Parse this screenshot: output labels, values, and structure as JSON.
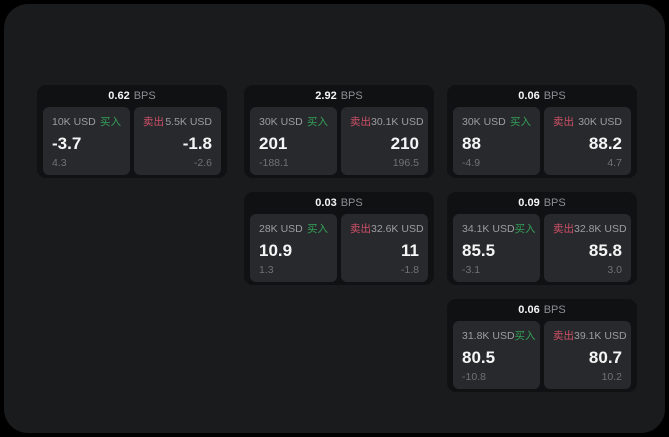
{
  "labels": {
    "bps_unit": "BPS",
    "buy": "买入",
    "sell": "卖出"
  },
  "colors": {
    "buy_green": "#34a159",
    "sell_red": "#cf5068",
    "window_bg": "#1a1b1d",
    "card_bg": "#101113",
    "panel_bg": "#28292c"
  },
  "cards": [
    {
      "row": 0,
      "col": 0,
      "bps": "0.62",
      "buy": {
        "amount": "10K USD",
        "value": "-3.7",
        "sub": "4.3"
      },
      "sell": {
        "amount": "5.5K USD",
        "value": "-1.8",
        "sub": "-2.6"
      }
    },
    {
      "row": 0,
      "col": 1,
      "bps": "2.92",
      "buy": {
        "amount": "30K USD",
        "value": "201",
        "sub": "-188.1"
      },
      "sell": {
        "amount": "30.1K USD",
        "value": "210",
        "sub": "196.5"
      }
    },
    {
      "row": 0,
      "col": 2,
      "bps": "0.06",
      "buy": {
        "amount": "30K USD",
        "value": "88",
        "sub": "-4.9"
      },
      "sell": {
        "amount": "30K USD",
        "value": "88.2",
        "sub": "4.7"
      }
    },
    {
      "row": 1,
      "col": 1,
      "bps": "0.03",
      "buy": {
        "amount": "28K USD",
        "value": "10.9",
        "sub": "1.3"
      },
      "sell": {
        "amount": "32.6K USD",
        "value": "11",
        "sub": "-1.8"
      }
    },
    {
      "row": 1,
      "col": 2,
      "bps": "0.09",
      "buy": {
        "amount": "34.1K USD",
        "value": "85.5",
        "sub": "-3.1"
      },
      "sell": {
        "amount": "32.8K USD",
        "value": "85.8",
        "sub": "3.0"
      }
    },
    {
      "row": 2,
      "col": 2,
      "bps": "0.06",
      "buy": {
        "amount": "31.8K USD",
        "value": "80.5",
        "sub": "-10.8"
      },
      "sell": {
        "amount": "39.1K USD",
        "value": "80.7",
        "sub": "10.2"
      }
    }
  ]
}
